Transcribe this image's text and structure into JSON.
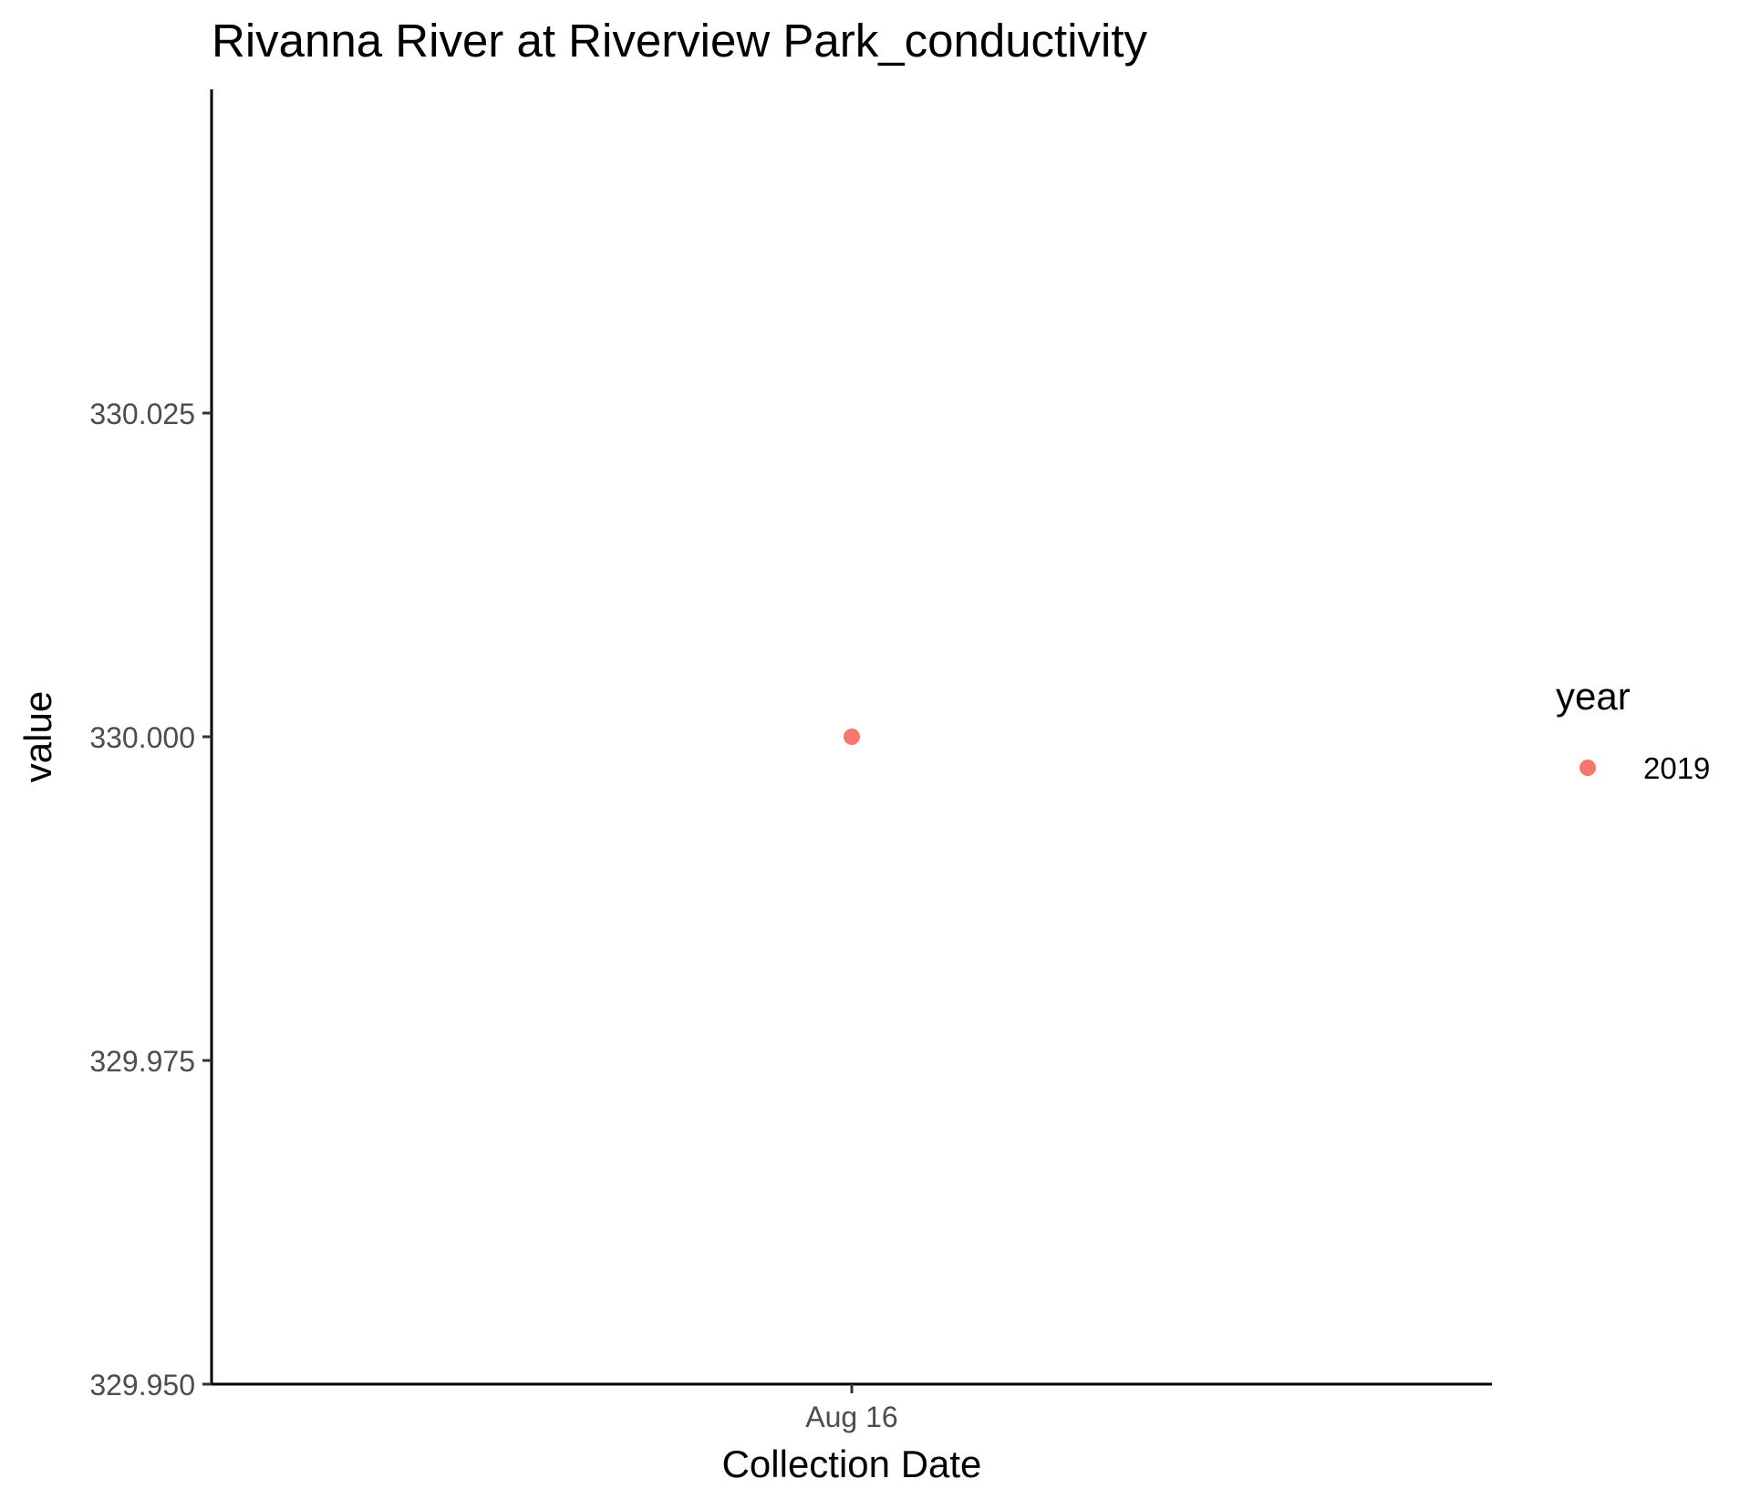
{
  "chart_data": {
    "type": "scatter",
    "title": "Rivanna River at Riverview Park_conductivity",
    "xlabel": "Collection Date",
    "ylabel": "value",
    "x_ticks": [
      "Aug 16"
    ],
    "y_ticks": [
      "329.950",
      "329.975",
      "330.000",
      "330.025"
    ],
    "ylim": [
      329.95,
      330.05
    ],
    "grid": false,
    "legend": {
      "title": "year",
      "position": "right",
      "entries": [
        {
          "label": "2019",
          "color": "#F8766D"
        }
      ]
    },
    "series": [
      {
        "name": "2019",
        "color": "#F8766D",
        "points": [
          {
            "x": "Aug 16",
            "y": 330.0
          }
        ]
      }
    ]
  }
}
